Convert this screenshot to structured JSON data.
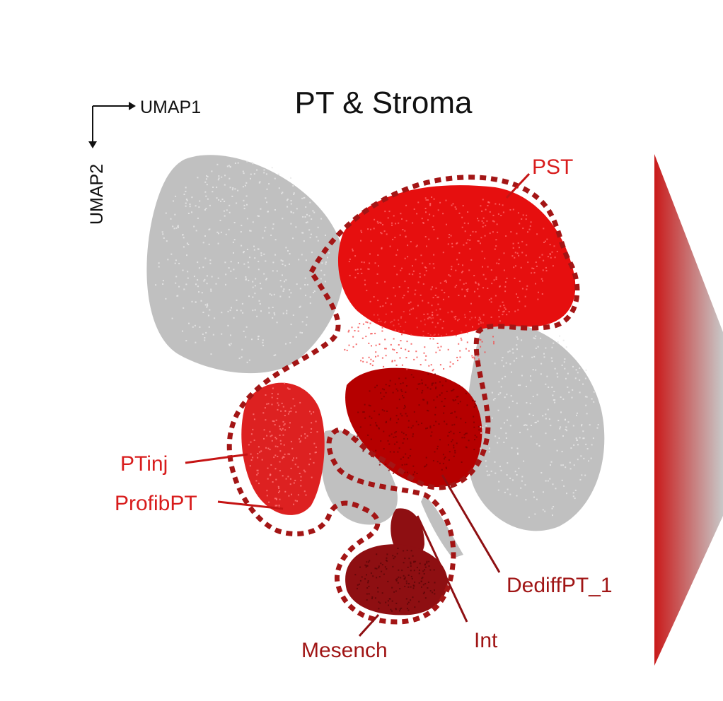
{
  "chart_data": {
    "type": "scatter",
    "title": "PT & Stroma",
    "xlabel": "UMAP1",
    "ylabel": "UMAP2",
    "axes_shown": false,
    "background_color": "#c0c0c0",
    "clusters": [
      {
        "name": "PST",
        "color": "#e60f0f",
        "highlighted": true
      },
      {
        "name": "PTinj",
        "color": "#dd2121",
        "highlighted": true
      },
      {
        "name": "ProfibPT",
        "color": "#dd2121",
        "highlighted": true
      },
      {
        "name": "DediffPT_1",
        "color": "#b50000",
        "highlighted": true
      },
      {
        "name": "Int",
        "color": "#8e0f12",
        "highlighted": true
      },
      {
        "name": "Mesench",
        "color": "#8e0f12",
        "highlighted": true
      }
    ],
    "outline_color": "#a31515",
    "colorbar": {
      "low_color": "#c91a1a",
      "high_color": "#c8c8c8",
      "orientation": "horizontal-gradient"
    }
  }
}
